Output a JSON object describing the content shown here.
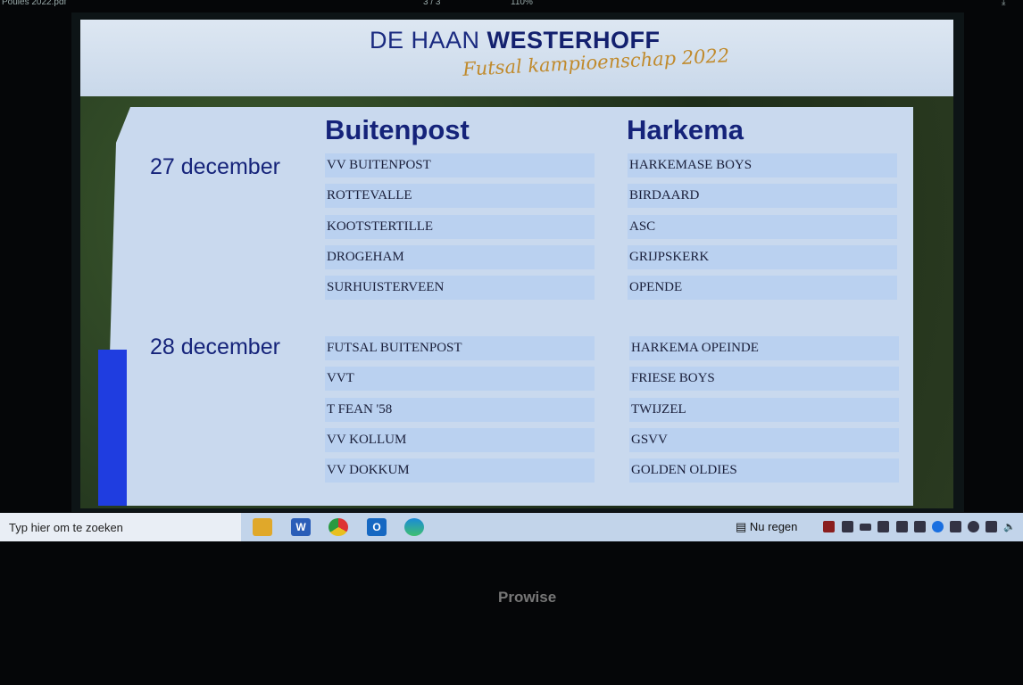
{
  "viewer": {
    "filename": "Poules 2022.pdf",
    "page": "3 / 3",
    "zoom": "110%"
  },
  "header": {
    "brand_light": "DE HAAN",
    "brand_bold": "WESTERHOFF",
    "subtitle": "Futsal kampioenschap 2022"
  },
  "columns": [
    "Buitenpost",
    "Harkema"
  ],
  "days": [
    {
      "date": "27 december",
      "buitenpost": [
        "VV BUITENPOST",
        "ROTTEVALLE",
        "KOOTSTERTILLE",
        "DROGEHAM",
        "SURHUISTERVEEN"
      ],
      "harkema": [
        "HARKEMASE BOYS",
        "BIRDAARD",
        "ASC",
        "GRIJPSKERK",
        "OPENDE"
      ]
    },
    {
      "date": "28 december",
      "buitenpost": [
        "FUTSAL BUITENPOST",
        "VVT",
        "T FEAN '58",
        "VV KOLLUM",
        "VV DOKKUM"
      ],
      "harkema": [
        "HARKEMA OPEINDE",
        "FRIESE BOYS",
        "TWIJZEL",
        "GSVV",
        "GOLDEN OLDIES"
      ]
    }
  ],
  "taskbar": {
    "search_placeholder": "Typ hier om te zoeken",
    "weather": "Nu regen",
    "apps": [
      "file-explorer",
      "word",
      "chrome",
      "outlook",
      "edge"
    ]
  },
  "bezel": {
    "brand": "Prowise"
  },
  "colors": {
    "title": "#15237a",
    "accent": "#c08a2c",
    "strip": "#1f3de0"
  }
}
